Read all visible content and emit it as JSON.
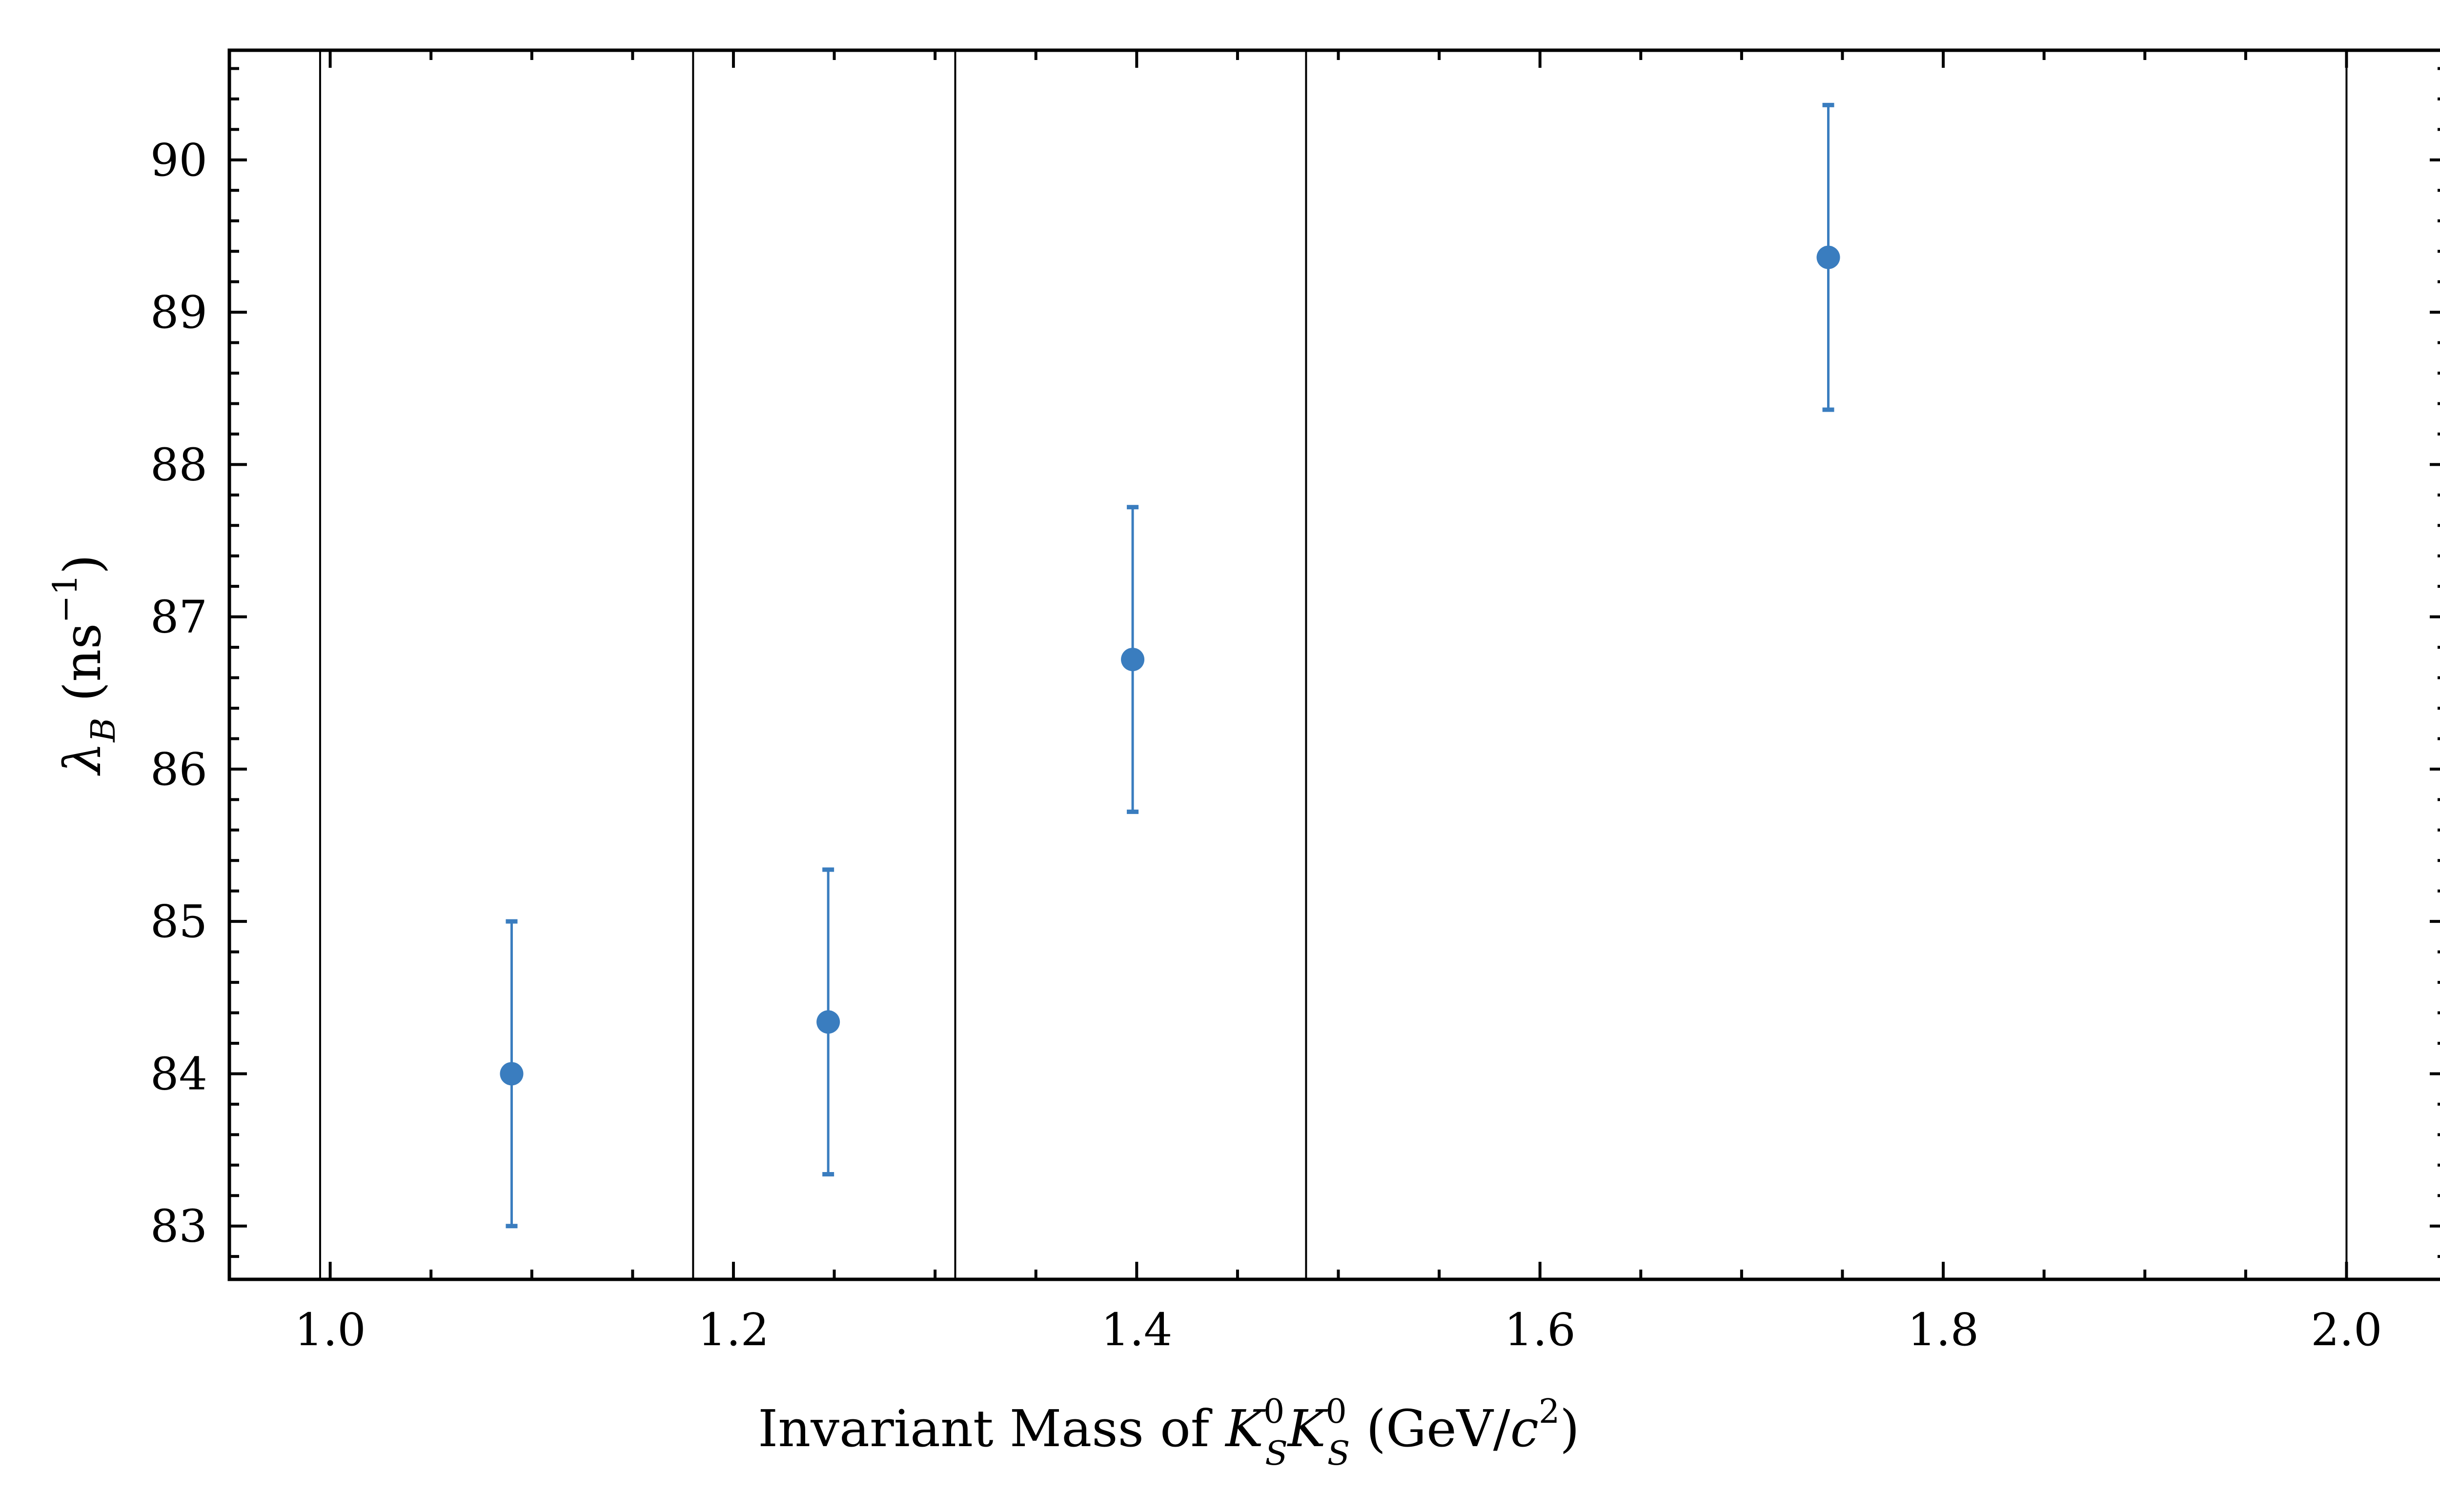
{
  "chart_data": {
    "type": "scatter",
    "title": "",
    "xlabel": {
      "prefix": "Invariant Mass of ",
      "symbol": "K",
      "superscript": "0",
      "subscript": "S",
      "unit_open": " (GeV/",
      "unit_symbol": "c",
      "unit_power": "2",
      "unit_close": ")"
    },
    "ylabel": {
      "symbol": "λ",
      "subscript": "B",
      "unit_open": " (ns",
      "unit_power": "−1",
      "unit_close": ")"
    },
    "xlim": [
      0.95,
      2.05
    ],
    "ylim": [
      82.65,
      90.72
    ],
    "x_ticks": [
      1.0,
      1.2,
      1.4,
      1.6,
      1.8,
      2.0
    ],
    "x_tick_labels": [
      "1.0",
      "1.2",
      "1.4",
      "1.6",
      "1.8",
      "2.0"
    ],
    "y_ticks": [
      83,
      84,
      85,
      86,
      87,
      88,
      89,
      90
    ],
    "y_tick_labels": [
      "83",
      "84",
      "85",
      "86",
      "87",
      "88",
      "89",
      "90"
    ],
    "x_minor_step": 0.05,
    "y_minor_step": 0.2,
    "bin_edges": [
      0.995,
      1.18,
      1.31,
      1.484,
      2.0
    ],
    "grid": false,
    "legend": "none",
    "marker_color": "#3a7dbf",
    "points": [
      {
        "x": 1.09,
        "y": 84.0,
        "err": 1.0
      },
      {
        "x": 1.247,
        "y": 84.34,
        "err": 1.0
      },
      {
        "x": 1.398,
        "y": 86.72,
        "err": 1.0
      },
      {
        "x": 1.743,
        "y": 89.36,
        "err": 1.0
      }
    ]
  }
}
